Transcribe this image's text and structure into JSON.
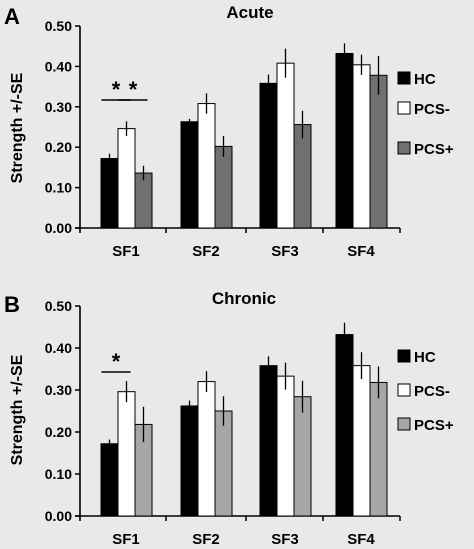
{
  "chart_data": [
    {
      "panel": "A",
      "type": "bar",
      "title": "Acute",
      "ylabel": "Strength +/-SE",
      "categories": [
        "SF1",
        "SF2",
        "SF3",
        "SF4"
      ],
      "ylim": [
        0,
        0.5
      ],
      "yticks": [
        "0.00",
        "0.10",
        "0.20",
        "0.30",
        "0.40",
        "0.50"
      ],
      "series": [
        {
          "name": "HC",
          "color": "#000000",
          "values": [
            0.172,
            0.263,
            0.358,
            0.432
          ],
          "errors": [
            0.012,
            0.007,
            0.022,
            0.025
          ]
        },
        {
          "name": "PCS-",
          "color": "#ffffff",
          "values": [
            0.246,
            0.308,
            0.408,
            0.404
          ],
          "errors": [
            0.018,
            0.025,
            0.036,
            0.025
          ]
        },
        {
          "name": "PCS+",
          "color": "#707070",
          "values": [
            0.136,
            0.202,
            0.256,
            0.378
          ],
          "errors": [
            0.018,
            0.026,
            0.034,
            0.048
          ]
        }
      ],
      "significance": [
        {
          "label": "*",
          "category": "SF1",
          "from": "HC",
          "to": "PCS-"
        },
        {
          "label": "*",
          "category": "SF1",
          "from": "PCS-",
          "to": "PCS+"
        }
      ],
      "legend": "right"
    },
    {
      "panel": "B",
      "type": "bar",
      "title": "Chronic",
      "ylabel": "Strength +/-SE",
      "categories": [
        "SF1",
        "SF2",
        "SF3",
        "SF4"
      ],
      "ylim": [
        0,
        0.5
      ],
      "yticks": [
        "0.00",
        "0.10",
        "0.20",
        "0.30",
        "0.40",
        "0.50"
      ],
      "series": [
        {
          "name": "HC",
          "color": "#000000",
          "values": [
            0.172,
            0.262,
            0.358,
            0.432
          ],
          "errors": [
            0.01,
            0.013,
            0.022,
            0.028
          ]
        },
        {
          "name": "PCS-",
          "color": "#ffffff",
          "values": [
            0.296,
            0.32,
            0.333,
            0.358
          ],
          "errors": [
            0.025,
            0.025,
            0.032,
            0.032
          ]
        },
        {
          "name": "PCS+",
          "color": "#a6a6a6",
          "values": [
            0.218,
            0.25,
            0.284,
            0.318
          ],
          "errors": [
            0.042,
            0.035,
            0.038,
            0.038
          ]
        }
      ],
      "significance": [
        {
          "label": "*",
          "category": "SF1",
          "from": "HC",
          "to": "PCS-"
        }
      ],
      "legend": "right"
    }
  ]
}
